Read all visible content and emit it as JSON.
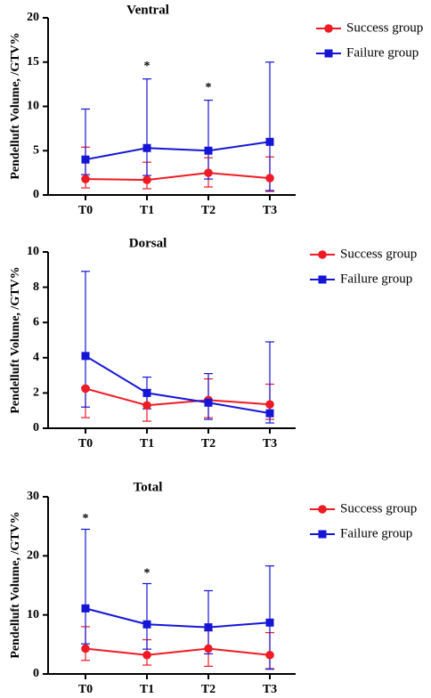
{
  "colors": {
    "success": "#ee1b24",
    "failure": "#1515d6"
  },
  "chart_data": [
    {
      "type": "line",
      "title": "Ventral",
      "ylabel": "Pendelluft Volume, /GTV%",
      "categories": [
        "T0",
        "T1",
        "T2",
        "T3"
      ],
      "ylim": [
        0,
        20
      ],
      "yticks": [
        "0",
        "5",
        "10",
        "15",
        "20"
      ],
      "legend_position": "top-right",
      "series": [
        {
          "name": "Success group",
          "marker": "circle",
          "values": [
            1.8,
            1.7,
            2.5,
            1.9
          ],
          "err_upper": [
            5.4,
            3.7,
            4.2,
            4.3
          ],
          "err_lower": [
            0.8,
            0.7,
            0.9,
            0.4
          ]
        },
        {
          "name": "Failure group",
          "marker": "square",
          "values": [
            4.0,
            5.3,
            5.0,
            6.0
          ],
          "err_upper": [
            9.7,
            13.1,
            10.7,
            15.0
          ],
          "err_lower": [
            2.3,
            2.2,
            1.8,
            0.5
          ]
        }
      ],
      "annotations": [
        {
          "category": "T1",
          "y": 14.5,
          "text": "*"
        },
        {
          "category": "T2",
          "y": 12.1,
          "text": "*"
        }
      ]
    },
    {
      "type": "line",
      "title": "Dorsal",
      "ylabel": "Pendelluft Volume, /GTV%",
      "categories": [
        "T0",
        "T1",
        "T2",
        "T3"
      ],
      "ylim": [
        0,
        10
      ],
      "yticks": [
        "0",
        "2",
        "4",
        "6",
        "8",
        "10"
      ],
      "legend_position": "top-right",
      "series": [
        {
          "name": "Success group",
          "marker": "circle",
          "values": [
            2.25,
            1.3,
            1.6,
            1.35
          ],
          "err_upper": [
            2.3,
            2.2,
            2.8,
            2.5
          ],
          "err_lower": [
            0.6,
            0.4,
            0.6,
            0.5
          ]
        },
        {
          "name": "Failure group",
          "marker": "square",
          "values": [
            4.1,
            2.0,
            1.45,
            0.85
          ],
          "err_upper": [
            8.9,
            2.9,
            3.1,
            4.9
          ],
          "err_lower": [
            1.2,
            1.1,
            0.5,
            0.3
          ]
        }
      ],
      "annotations": []
    },
    {
      "type": "line",
      "title": "Total",
      "ylabel": "Pendelluft Volume, /GTV%",
      "categories": [
        "T0",
        "T1",
        "T2",
        "T3"
      ],
      "ylim": [
        0,
        30
      ],
      "yticks": [
        "0",
        "10",
        "20",
        "30"
      ],
      "legend_position": "top-right",
      "series": [
        {
          "name": "Success group",
          "marker": "circle",
          "values": [
            4.3,
            3.2,
            4.3,
            3.2
          ],
          "err_upper": [
            8.0,
            5.8,
            7.3,
            7.0
          ],
          "err_lower": [
            2.3,
            1.5,
            1.3,
            0.9
          ]
        },
        {
          "name": "Failure group",
          "marker": "square",
          "values": [
            11.1,
            8.4,
            7.9,
            8.7
          ],
          "err_upper": [
            24.5,
            15.3,
            14.1,
            18.3
          ],
          "err_lower": [
            5.1,
            4.2,
            3.4,
            0.8
          ]
        }
      ],
      "annotations": [
        {
          "category": "T0",
          "y": 26.3,
          "text": "*"
        },
        {
          "category": "T1",
          "y": 17.0,
          "text": "*"
        }
      ]
    }
  ]
}
